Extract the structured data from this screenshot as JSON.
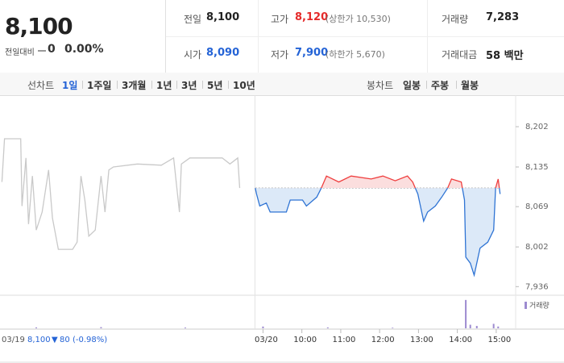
{
  "quote": {
    "price": "8,100",
    "change_label": "전일대비",
    "change": "0",
    "change_rate": "0.00%"
  },
  "info": [
    [
      {
        "label": "전일",
        "value": "8,100",
        "color": "#222222"
      },
      {
        "label": "고가",
        "value": "8,120",
        "note": "(상한가 10,530)",
        "color": "#e52b2b"
      },
      {
        "label": "거래량",
        "value": "7,283",
        "color": "#222222"
      }
    ],
    [
      {
        "label": "시가",
        "value": "8,090",
        "color": "#2463d6"
      },
      {
        "label": "저가",
        "value": "7,900",
        "note": "(하한가 5,670)",
        "color": "#2463d6"
      },
      {
        "label": "거래대금",
        "value": "58 백만",
        "color": "#222222"
      }
    ]
  ],
  "tabs": {
    "line_label": "선차트",
    "line_periods": [
      "1일",
      "1주일",
      "3개월",
      "1년",
      "3년",
      "5년",
      "10년"
    ],
    "candle_label": "봉차트",
    "candle_periods": [
      "일봉",
      "주봉",
      "월봉"
    ]
  },
  "chart_data": {
    "type": "line",
    "xlim": [
      -406,
      390
    ],
    "xticks": [
      {
        "value": 0,
        "label": "03/20"
      },
      {
        "value": 60,
        "label": "10:00"
      },
      {
        "value": 120,
        "label": "11:00"
      },
      {
        "value": 180,
        "label": "12:00"
      },
      {
        "value": 240,
        "label": "13:00"
      },
      {
        "value": 300,
        "label": "14:00"
      },
      {
        "value": 360,
        "label": "15:00"
      }
    ],
    "ylim": [
      7923,
      8245
    ],
    "yticks": [
      {
        "value": 8202,
        "label": "8,202"
      },
      {
        "value": 8135,
        "label": "8,135"
      },
      {
        "value": 8069,
        "label": "8,069"
      },
      {
        "value": 8002,
        "label": "8,002"
      },
      {
        "value": 7936,
        "label": "7,936"
      }
    ],
    "baseline": 8100,
    "series": [
      {
        "color": "#c9c9c9",
        "x": [
          -403,
          -399,
          -374,
          -372,
          -366,
          -362,
          -356,
          -350,
          -341,
          -331,
          -325,
          -316,
          -294,
          -287,
          -281,
          -275,
          -269,
          -259,
          -250,
          -244,
          -238,
          -231,
          -194,
          -157,
          -138,
          -129,
          -126,
          -113,
          -63,
          -51,
          -39,
          -36
        ],
        "values": [
          8110,
          8182,
          8182,
          8070,
          8150,
          8040,
          8120,
          8030,
          8060,
          8130,
          8050,
          7998,
          7998,
          8010,
          8120,
          8080,
          8020,
          8030,
          8120,
          8060,
          8130,
          8135,
          8140,
          8138,
          8150,
          8060,
          8140,
          8150,
          8150,
          8140,
          8150,
          8100
        ]
      },
      {
        "color": "#2f74d4",
        "up_color": "#ef3e3e",
        "fill": "#dce9f8",
        "up_fill": "#fbdede",
        "x": [
          -12,
          -10,
          -5,
          5,
          11,
          36,
          42,
          61,
          67,
          83,
          90,
          98,
          117,
          136,
          167,
          185,
          204,
          223,
          231,
          239,
          248,
          254,
          266,
          276,
          285,
          291,
          306,
          311,
          313,
          320,
          326,
          335,
          347,
          356,
          359,
          363,
          366
        ],
        "values": [
          8100,
          8090,
          8070,
          8075,
          8060,
          8060,
          8080,
          8080,
          8070,
          8085,
          8100,
          8120,
          8110,
          8120,
          8115,
          8120,
          8112,
          8120,
          8110,
          8090,
          8045,
          8060,
          8070,
          8085,
          8100,
          8115,
          8110,
          8080,
          7985,
          7975,
          7955,
          8000,
          8010,
          8030,
          8100,
          8115,
          8090
        ]
      }
    ],
    "volume": {
      "legend": "거래량",
      "color": "#9d8bd0",
      "ylim": [
        0,
        1000
      ],
      "x": [
        -350,
        -250,
        -120,
        0,
        100,
        200,
        313,
        320,
        330,
        356,
        363
      ],
      "values": [
        30,
        40,
        25,
        60,
        30,
        20,
        950,
        120,
        80,
        150,
        60
      ]
    }
  },
  "footer": {
    "date": "03/19",
    "close": "8,100",
    "change": "80",
    "rate": "(-0.98%)"
  }
}
